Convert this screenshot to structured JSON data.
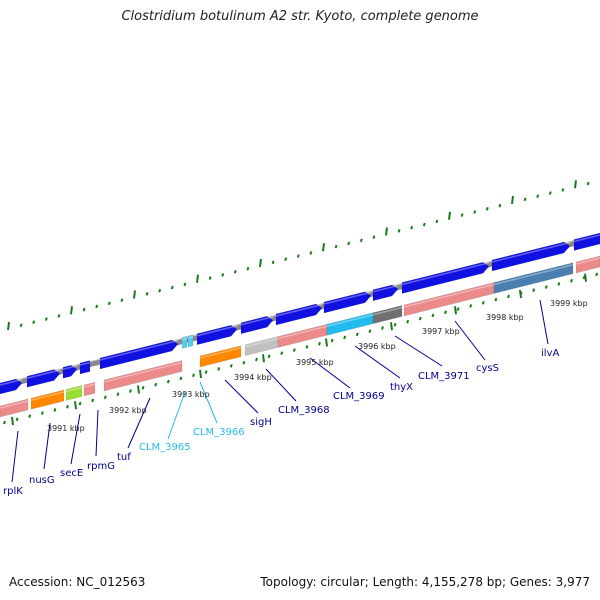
{
  "title": "Clostridium botulinum A2 str. Kyoto, complete genome",
  "footer": {
    "accession": "Accession: NC_012563",
    "summary": "Topology: circular; Length: 4,155,278 bp; Genes: 3,977"
  },
  "colors": {
    "forward_gene": "#1010e0",
    "rna_gene": "#ea8a8a",
    "label_dark": "#000090",
    "label_light": "#22bbee",
    "tick": "#1a7a1a",
    "backbone": "#8a8a8a"
  },
  "kbp_labels": [
    "3991 kbp",
    "3992 kbp",
    "3993 kbp",
    "3994 kbp",
    "3995 kbp",
    "3996 kbp",
    "3997 kbp",
    "3998 kbp",
    "3999 kbp"
  ],
  "gene_labels": [
    "rplK",
    "nusG",
    "secE",
    "rpmG",
    "tuf",
    "CLM_3965",
    "CLM_3966",
    "sigH",
    "CLM_3968",
    "CLM_3969",
    "thyX",
    "CLM_3971",
    "cysS",
    "ilvA"
  ]
}
